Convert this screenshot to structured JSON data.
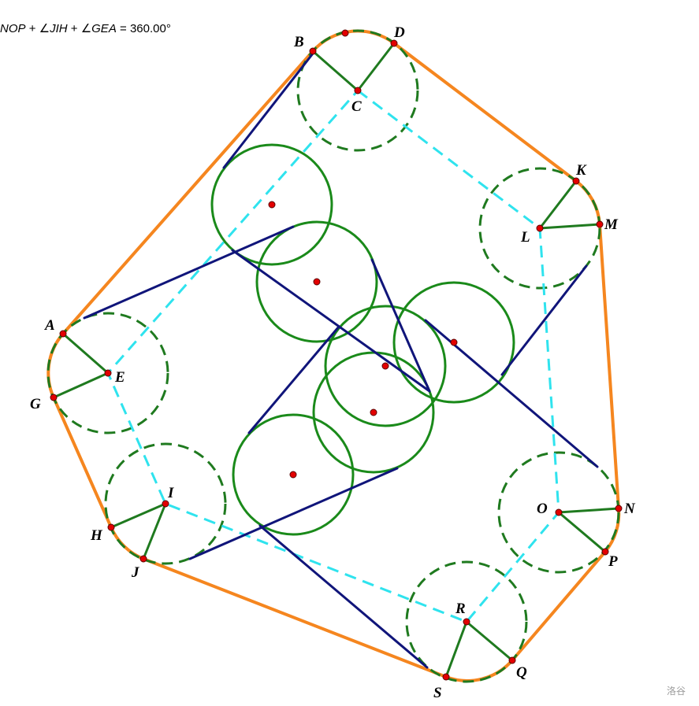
{
  "header": {
    "a1": "NOP",
    "a2": "JIH",
    "a3": "GEA",
    "plus": "+",
    "angle_sign": "∠",
    "equals": "=",
    "value": "360.00°"
  },
  "watermark": "洛谷",
  "colors": {
    "outline": "#f5861f",
    "corner_circle": "#1f7a1f",
    "inner_circle": "#1a8a1a",
    "tangent": "#10157a",
    "dashed": "#2fe3ee",
    "point": "#e30000"
  },
  "labels": {
    "A": "A",
    "B": "B",
    "C": "C",
    "D": "D",
    "E": "E",
    "G": "G",
    "H": "H",
    "I": "I",
    "J": "J",
    "K": "K",
    "L": "L",
    "M": "M",
    "N": "N",
    "O": "O",
    "P": "P",
    "Q": "Q",
    "R": "R",
    "S": "S"
  }
}
